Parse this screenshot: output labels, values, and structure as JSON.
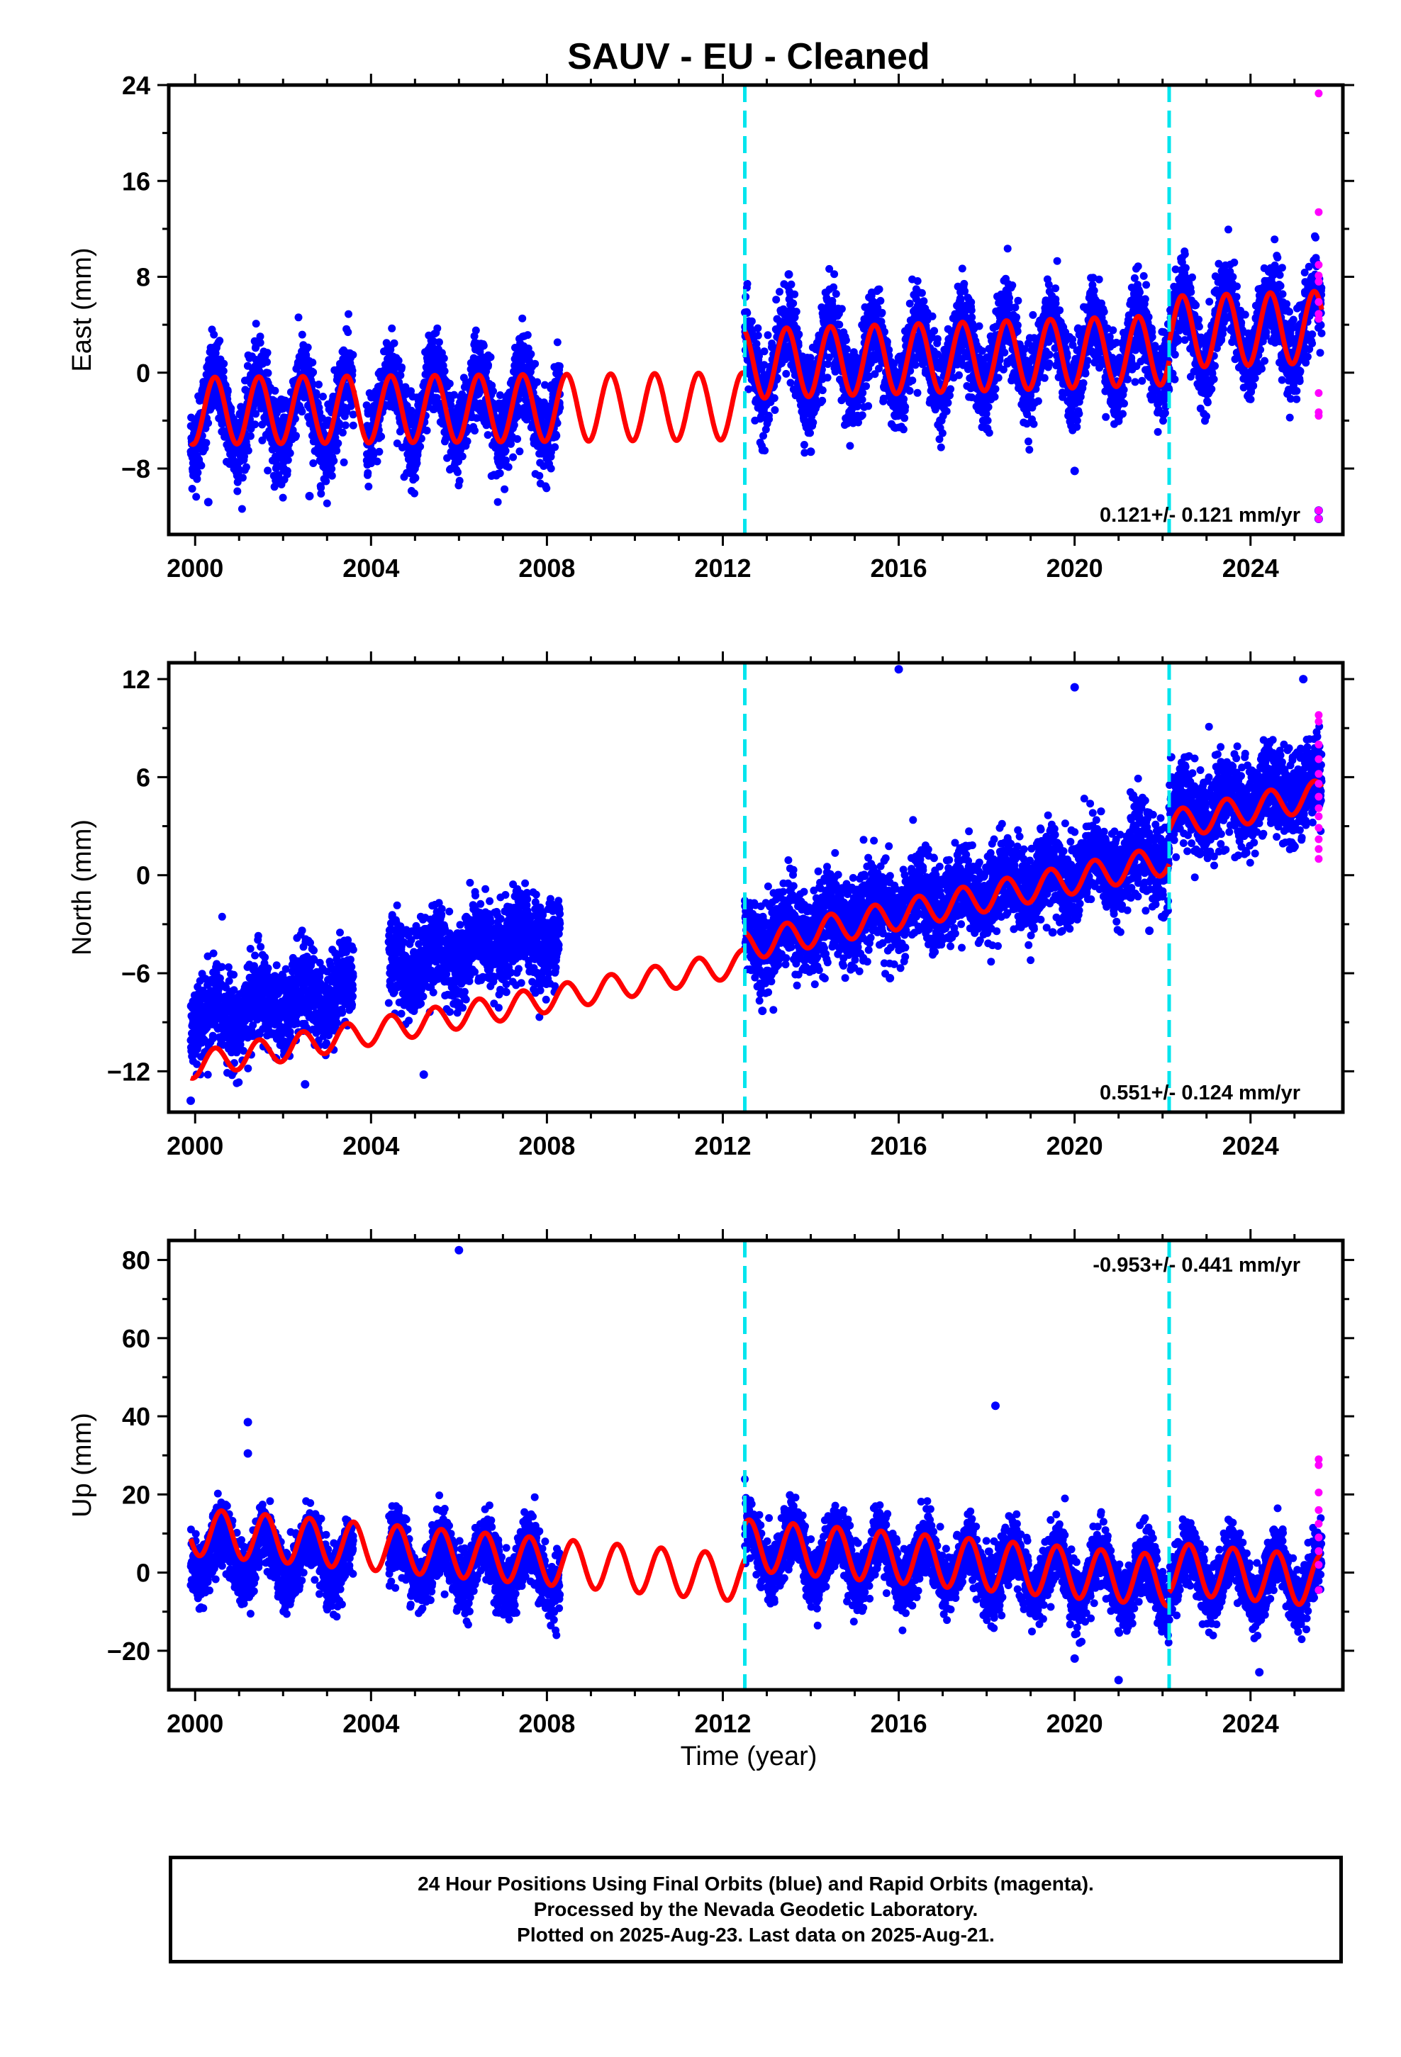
{
  "chart_data": [
    {
      "type": "scatter",
      "title": "SAUV  - EU - Cleaned",
      "ylabel": "East (mm)",
      "xlabel": "",
      "xlim": [
        1999.4,
        2026.1
      ],
      "ylim": [
        -13.5,
        24
      ],
      "xticks": [
        "2000",
        "2004",
        "2008",
        "2012",
        "2016",
        "2020",
        "2024"
      ],
      "yticks": [
        "−8",
        "0",
        "8",
        "16",
        "24"
      ],
      "ytick_values": [
        -8,
        0,
        8,
        16,
        24
      ],
      "rate_label": "0.121+/- 0.121 mm/yr",
      "rate_position": "bottom-right",
      "offsets_years": [
        2012.5,
        2022.15
      ],
      "final_orbit_color": "#0000ff",
      "rapid_orbit_color": "#ff00ff",
      "model_color": "#ff0000",
      "offset_line_color": "#00e5ee",
      "segments": [
        {
          "start": 1999.9,
          "end": 2003.6,
          "mean": -3.3,
          "slope": 0.0
        },
        {
          "start": 2003.9,
          "end": 2008.3,
          "mean": -2.8,
          "slope": 0.0
        },
        {
          "start": 2012.5,
          "end": 2022.15,
          "mean": 1.3,
          "slope": 0.12
        },
        {
          "start": 2022.15,
          "end": 2025.62,
          "mean": 3.6,
          "slope": 0.12
        }
      ],
      "model_segments": [
        {
          "start": 1999.9,
          "end": 2012.5,
          "mean": -3.0,
          "slope": 0.03,
          "amplitude": 2.8
        },
        {
          "start": 2012.5,
          "end": 2022.15,
          "mean": 1.3,
          "slope": 0.12,
          "amplitude": 2.9
        },
        {
          "start": 2022.15,
          "end": 2025.62,
          "mean": 3.6,
          "slope": 0.12,
          "amplitude": 3.0
        }
      ],
      "scatter_sigma": 1.7,
      "annual_amplitude": 2.9,
      "annual_peak_phase": 0.45,
      "outliers": [
        [
          2000.3,
          -10.8
        ],
        [
          2002.6,
          -10.3
        ],
        [
          2013.5,
          8.2
        ],
        [
          2014.0,
          -6.6
        ],
        [
          2020.0,
          -8.2
        ],
        [
          2025.55,
          -12.2
        ],
        [
          2025.55,
          -11.5
        ]
      ],
      "rapid_points": [
        [
          2025.55,
          23.3
        ],
        [
          2025.55,
          13.4
        ],
        [
          2025.55,
          9.0
        ],
        [
          2025.55,
          8.1
        ],
        [
          2025.55,
          7.6
        ],
        [
          2025.55,
          5.9
        ],
        [
          2025.55,
          4.9
        ],
        [
          2025.55,
          4.5
        ],
        [
          2025.55,
          -1.7
        ],
        [
          2025.55,
          -3.3
        ],
        [
          2025.55,
          -3.6
        ],
        [
          2025.55,
          -12.2
        ],
        [
          2025.55,
          -11.5
        ]
      ]
    },
    {
      "type": "scatter",
      "ylabel": "North (mm)",
      "xlabel": "",
      "xlim": [
        1999.4,
        2026.1
      ],
      "ylim": [
        -14.5,
        13
      ],
      "xticks": [
        "2000",
        "2004",
        "2008",
        "2012",
        "2016",
        "2020",
        "2024"
      ],
      "yticks": [
        "−12",
        "−6",
        "0",
        "6",
        "12"
      ],
      "ytick_values": [
        -12,
        -6,
        0,
        6,
        12
      ],
      "rate_label": "0.551+/- 0.124 mm/yr",
      "rate_position": "bottom-right",
      "offsets_years": [
        2012.5,
        2022.15
      ],
      "final_orbit_color": "#0000ff",
      "rapid_orbit_color": "#ff00ff",
      "model_color": "#ff0000",
      "offset_line_color": "#00e5ee",
      "segments": [
        {
          "start": 1999.9,
          "end": 2003.6,
          "mean": -7.9,
          "slope": 0.55
        },
        {
          "start": 2004.4,
          "end": 2008.3,
          "mean": -4.6,
          "slope": 0.55
        },
        {
          "start": 2012.5,
          "end": 2022.15,
          "mean": -1.3,
          "slope": 0.55
        },
        {
          "start": 2022.15,
          "end": 2025.62,
          "mean": 4.6,
          "slope": 0.55
        }
      ],
      "model_segments": [
        {
          "start": 1999.9,
          "end": 2012.5,
          "mean": -8.5,
          "slope": 0.5,
          "amplitude": 0.8
        },
        {
          "start": 2012.5,
          "end": 2022.15,
          "mean": -1.7,
          "slope": 0.55,
          "amplitude": 0.9
        },
        {
          "start": 2022.15,
          "end": 2025.62,
          "mean": 4.0,
          "slope": 0.55,
          "amplitude": 0.9
        }
      ],
      "scatter_sigma": 1.3,
      "annual_amplitude": 0.8,
      "annual_peak_phase": 0.45,
      "outliers": [
        [
          2016.0,
          12.6
        ],
        [
          2020.0,
          11.5
        ],
        [
          2025.2,
          12.0
        ],
        [
          1999.9,
          -13.8
        ],
        [
          2002.5,
          -12.8
        ],
        [
          2005.2,
          -12.2
        ],
        [
          2012.9,
          -8.3
        ],
        [
          2015.8,
          -6.3
        ],
        [
          2019.5,
          -3.5
        ],
        [
          2021.7,
          -3.4
        ]
      ],
      "rapid_points": [
        [
          2025.55,
          9.8
        ],
        [
          2025.55,
          9.4
        ],
        [
          2025.55,
          8.0
        ],
        [
          2025.55,
          7.1
        ],
        [
          2025.55,
          6.2
        ],
        [
          2025.55,
          5.6
        ],
        [
          2025.55,
          4.8
        ],
        [
          2025.55,
          4.1
        ],
        [
          2025.55,
          3.6
        ],
        [
          2025.55,
          2.9
        ],
        [
          2025.55,
          2.2
        ],
        [
          2025.55,
          1.6
        ],
        [
          2025.55,
          1.0
        ]
      ]
    },
    {
      "type": "scatter",
      "ylabel": "Up (mm)",
      "xlabel": "Time (year)",
      "xlim": [
        1999.4,
        2026.1
      ],
      "ylim": [
        -30,
        85
      ],
      "xticks": [
        "2000",
        "2004",
        "2008",
        "2012",
        "2016",
        "2020",
        "2024"
      ],
      "yticks": [
        "−20",
        "0",
        "20",
        "40",
        "60",
        "80"
      ],
      "ytick_values": [
        -20,
        0,
        20,
        40,
        60,
        80
      ],
      "rate_label": "-0.953+/- 0.441 mm/yr",
      "rate_position": "top-right",
      "offsets_years": [
        2012.5,
        2022.15
      ],
      "final_orbit_color": "#0000ff",
      "rapid_orbit_color": "#ff00ff",
      "model_color": "#ff0000",
      "offset_line_color": "#00e5ee",
      "segments": [
        {
          "start": 1999.9,
          "end": 2003.6,
          "mean": 4.0,
          "slope": -0.9
        },
        {
          "start": 2004.4,
          "end": 2008.3,
          "mean": 2.0,
          "slope": -0.9
        },
        {
          "start": 2012.5,
          "end": 2022.15,
          "mean": 1.5,
          "slope": -0.9
        },
        {
          "start": 2022.15,
          "end": 2025.62,
          "mean": -1.0,
          "slope": -0.9
        }
      ],
      "model_segments": [
        {
          "start": 1999.9,
          "end": 2012.5,
          "mean": 4.5,
          "slope": -0.95,
          "amplitude": 6.0
        },
        {
          "start": 2012.5,
          "end": 2022.15,
          "mean": 2.5,
          "slope": -0.95,
          "amplitude": 6.5
        },
        {
          "start": 2022.15,
          "end": 2025.62,
          "mean": -0.5,
          "slope": -0.95,
          "amplitude": 6.5
        }
      ],
      "scatter_sigma": 4.0,
      "annual_amplitude": 6.0,
      "annual_peak_phase": 0.6,
      "outliers": [
        [
          2006.0,
          82.5
        ],
        [
          2018.2,
          42.7
        ],
        [
          2001.2,
          38.5
        ],
        [
          2001.2,
          30.5
        ],
        [
          2021.0,
          -27.5
        ],
        [
          2024.2,
          -25.5
        ],
        [
          2020.0,
          -22.0
        ]
      ],
      "rapid_points": [
        [
          2025.55,
          29.0
        ],
        [
          2025.55,
          27.5
        ],
        [
          2025.55,
          20.5
        ],
        [
          2025.55,
          16.0
        ],
        [
          2025.55,
          12.5
        ],
        [
          2025.55,
          9.0
        ],
        [
          2025.55,
          5.5
        ],
        [
          2025.55,
          2.0
        ],
        [
          2025.55,
          -4.5
        ]
      ]
    }
  ],
  "footer": {
    "line1": "24 Hour Positions Using Final Orbits (blue) and Rapid Orbits (magenta).",
    "line2": "Processed by the Nevada Geodetic Laboratory.",
    "line3": "Plotted on 2025-Aug-23. Last data on 2025-Aug-21."
  }
}
